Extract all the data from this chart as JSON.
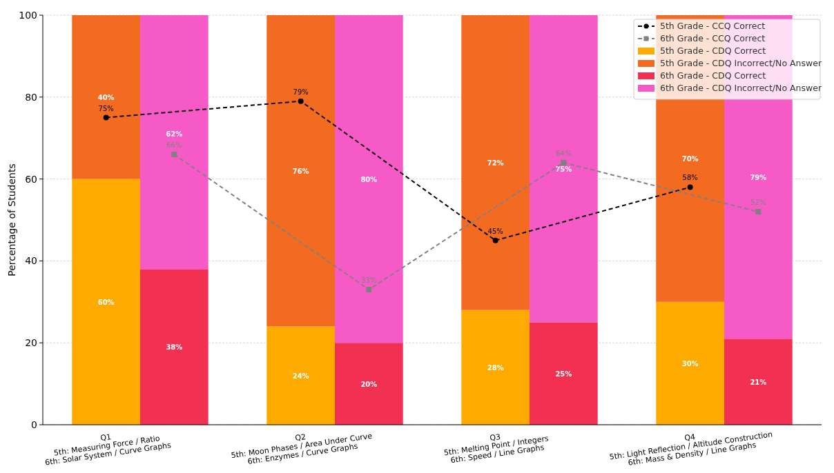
{
  "chart_data": {
    "type": "bar",
    "stacked": true,
    "categories": [
      "Q1\n5th: Measuring Force / Ratio\n6th: Solar System / Curve Graphs",
      null,
      "Q2\n5th: Moon Phases / Area Under Curve\n6th: Enzymes / Curve Graphs",
      null,
      "Q3\n5th: Melting Point / Integers\n6th: Speed / Line Graphs",
      null,
      "Q4\n5th: Light Reflection / Altitude Construction\n6th: Mass & Density / Line Graphs",
      null
    ],
    "ylabel": "Percentage of Students",
    "ylim": [
      0,
      100
    ],
    "yticks": [
      0,
      20,
      40,
      60,
      80,
      100
    ],
    "grid": "y",
    "legend": "top right",
    "series": [
      {
        "name": "5th Grade - CCQ Correct",
        "type": "line",
        "color": "#000000",
        "marker": "circle",
        "line_style": "dashed",
        "values": [
          75,
          null,
          79,
          null,
          45,
          null,
          58,
          null
        ],
        "value_labels": [
          "75%",
          null,
          "79%",
          null,
          "45%",
          null,
          "58%",
          null
        ]
      },
      {
        "name": "6th Grade - CCQ Correct",
        "type": "line",
        "color": "#808080",
        "marker": "square",
        "line_style": "dashed",
        "values": [
          null,
          66,
          null,
          33,
          null,
          64,
          null,
          52
        ],
        "value_labels": [
          null,
          "66%",
          null,
          "33%",
          null,
          "64%",
          null,
          "52%"
        ]
      },
      {
        "name": "5th Grade - CDQ Correct",
        "color": "#ffaa00",
        "values": [
          60,
          null,
          24,
          null,
          28,
          null,
          30,
          null
        ],
        "value_labels": [
          "60%",
          null,
          "24%",
          null,
          "28%",
          null,
          "30%",
          null
        ]
      },
      {
        "name": "5th Grade - CDQ Incorrect/No Answer",
        "color": "#f26b21",
        "values": [
          40,
          null,
          76,
          null,
          72,
          null,
          70,
          null
        ],
        "value_labels": [
          "40%",
          null,
          "76%",
          null,
          "72%",
          null,
          "70%",
          null
        ]
      },
      {
        "name": "6th Grade - CDQ Correct",
        "color": "#f23052",
        "values": [
          null,
          38,
          null,
          20,
          null,
          25,
          null,
          21
        ],
        "value_labels": [
          null,
          "38%",
          null,
          "20%",
          null,
          "25%",
          null,
          "21%"
        ]
      },
      {
        "name": "6th Grade - CDQ Incorrect/No Answer",
        "color": "#f55ac6",
        "values": [
          null,
          62,
          null,
          80,
          null,
          75,
          null,
          79
        ],
        "value_labels": [
          null,
          "62%",
          null,
          "80%",
          null,
          "75%",
          null,
          "79%"
        ]
      }
    ]
  }
}
